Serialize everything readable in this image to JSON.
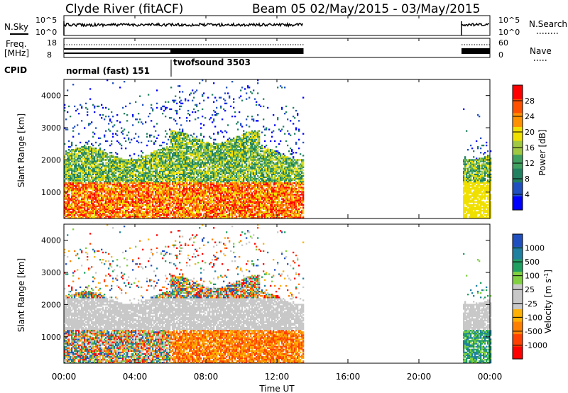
{
  "header": {
    "station": "Clyde River (fitACF)",
    "beam_date": "Beam 05  02/May/2015 - 03/May/2015"
  },
  "side_labels": {
    "nsky": "N.Sky",
    "freq_line1": "Freq.",
    "freq_line2": "[MHz]",
    "cpid": "CPID",
    "nsearch": "N.Search",
    "nave": "Nave"
  },
  "cpid_segments": [
    {
      "label": "normal (fast) 151",
      "start_h": 0.0,
      "end_h": 6.0
    },
    {
      "label": "twofsound 3503",
      "start_h": 6.0,
      "end_h": 24.0
    }
  ],
  "noise_axis": {
    "left_ticks": [
      "10^5",
      "10^0"
    ],
    "right_ticks": [
      "10^5",
      "10^0"
    ]
  },
  "freq_axis": {
    "left_ticks": [
      "18",
      "8"
    ],
    "right_ticks": [
      "60",
      "0"
    ]
  },
  "colors": {
    "power_scale": [
      "#0000ff",
      "#2050c0",
      "#208060",
      "#40a060",
      "#a0c840",
      "#f0e000",
      "#ff9000",
      "#ff5000",
      "#ff0000"
    ],
    "velocity_scale": [
      "#ff0000",
      "#ff4000",
      "#ff8000",
      "#ffb000",
      "#c8c8c8",
      "#c8c8c8",
      "#80d040",
      "#20a060",
      "#2080a0",
      "#2050c0"
    ]
  },
  "chart_data": [
    {
      "type": "heatmap",
      "name": "power",
      "ylabel": "Slant Range [km]",
      "ylim": [
        180,
        4500
      ],
      "y_ticks": [
        1000,
        2000,
        3000,
        4000
      ],
      "xlim": [
        0,
        24
      ],
      "colorbar_label": "Power [dB]",
      "colorbar_ticks": [
        "4",
        "8",
        "12",
        "16",
        "20",
        "24",
        "28"
      ],
      "observed_intervals_h": [
        [
          0,
          13.5
        ],
        [
          22.4,
          24
        ]
      ],
      "strong_echo_band_km": [
        200,
        1300
      ],
      "echo_top_km": 2200
    },
    {
      "type": "heatmap",
      "name": "velocity",
      "ylabel": "Slant Range [km]",
      "xlabel": "Time UT",
      "ylim": [
        180,
        4500
      ],
      "y_ticks": [
        1000,
        2000,
        3000,
        4000
      ],
      "xlim": [
        0,
        24
      ],
      "x_ticks": [
        "00:00",
        "04:00",
        "08:00",
        "12:00",
        "16:00",
        "20:00",
        "00:00"
      ],
      "colorbar_label": "Velocity [m s",
      "colorbar_label_sup": "-1",
      "colorbar_label_end": "]",
      "colorbar_ticks": [
        "-1000",
        "-500",
        "-100",
        "-25",
        "25",
        "100",
        "500",
        "1000"
      ],
      "observed_intervals_h": [
        [
          0,
          13.5
        ],
        [
          22.4,
          24
        ]
      ]
    }
  ]
}
